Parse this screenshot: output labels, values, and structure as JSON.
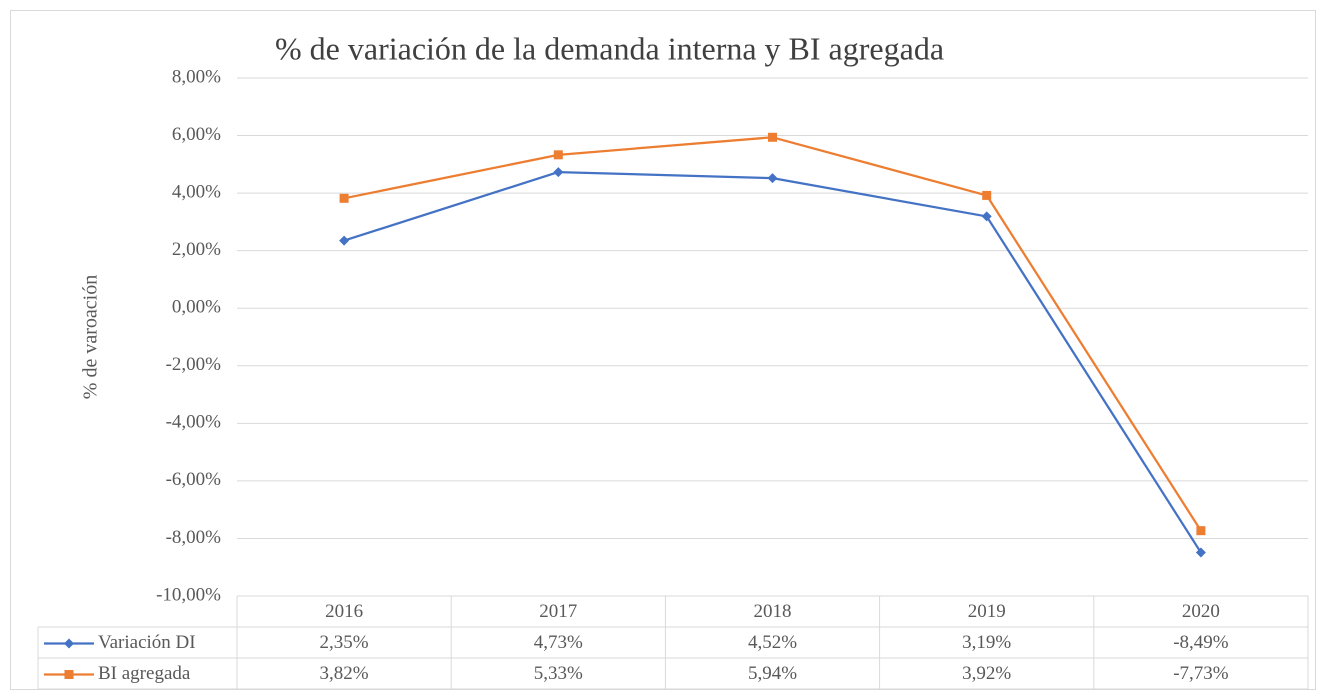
{
  "chart_data": {
    "type": "line",
    "title": "% de variación de la demanda interna y BI agregada",
    "y_label": "% de varoación",
    "categories": [
      "2016",
      "2017",
      "2018",
      "2019",
      "2020"
    ],
    "series": [
      {
        "name": "Variación DI",
        "color": "#4472c4",
        "marker": "diamond",
        "values": [
          2.35,
          4.73,
          4.52,
          3.19,
          -8.49
        ],
        "value_labels": [
          "2,35%",
          "4,73%",
          "4,52%",
          "3,19%",
          "-8,49%"
        ]
      },
      {
        "name": "BI agregada",
        "color": "#ed7d31",
        "marker": "square",
        "values": [
          3.82,
          5.33,
          5.94,
          3.92,
          -7.73
        ],
        "value_labels": [
          "3,82%",
          "5,33%",
          "5,94%",
          "3,92%",
          "-7,73%"
        ]
      }
    ],
    "ylim": [
      -10,
      8
    ],
    "yticks": [
      {
        "value": -10,
        "label": "-10,00%"
      },
      {
        "value": -8,
        "label": "-8,00%"
      },
      {
        "value": -6,
        "label": "-6,00%"
      },
      {
        "value": -4,
        "label": "-4,00%"
      },
      {
        "value": -2,
        "label": "-2,00%"
      },
      {
        "value": 0,
        "label": "0,00%"
      },
      {
        "value": 2,
        "label": "2,00%"
      },
      {
        "value": 4,
        "label": "4,00%"
      },
      {
        "value": 6,
        "label": "6,00%"
      },
      {
        "value": 8,
        "label": "8,00%"
      }
    ],
    "grid": true,
    "data_table": true
  }
}
